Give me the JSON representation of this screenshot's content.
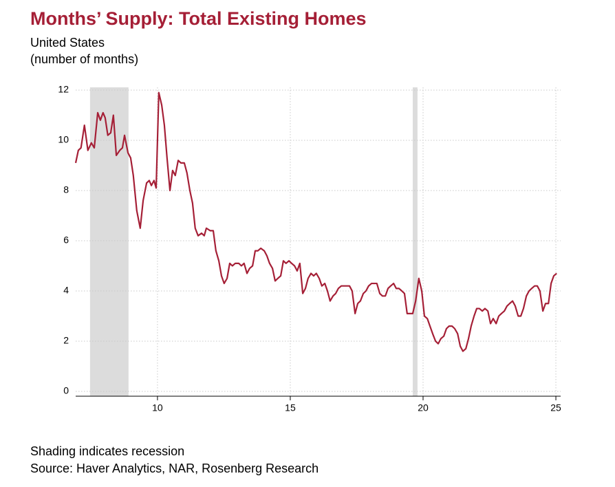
{
  "chart_data": {
    "type": "line",
    "title": "Months’ Supply: Total Existing Homes",
    "subtitle": "United States",
    "y_label": "(number of months)",
    "footnote": "Shading indicates recession",
    "source": "Source: Haver Analytics, NAR, Rosenberg Research",
    "xlim": [
      6.92,
      25.18
    ],
    "xticks": [
      10,
      15,
      20,
      25
    ],
    "ylim": [
      0,
      12
    ],
    "yticks": [
      0,
      2,
      4,
      6,
      8,
      10,
      12
    ],
    "grid": true,
    "recessions": [
      [
        7.46,
        8.91
      ],
      [
        19.61,
        19.79
      ]
    ],
    "recession_color": "#dcdcdc",
    "series": [
      {
        "color": "#a51f36",
        "x": [
          6.92,
          7.02,
          7.12,
          7.25,
          7.38,
          7.51,
          7.62,
          7.75,
          7.85,
          7.95,
          8.03,
          8.13,
          8.24,
          8.34,
          8.45,
          8.58,
          8.68,
          8.76,
          8.89,
          8.99,
          9.09,
          9.22,
          9.35,
          9.46,
          9.59,
          9.69,
          9.77,
          9.87,
          9.95,
          10.05,
          10.16,
          10.26,
          10.36,
          10.47,
          10.57,
          10.67,
          10.78,
          10.88,
          11.01,
          11.11,
          11.22,
          11.32,
          11.42,
          11.53,
          11.66,
          11.76,
          11.84,
          11.99,
          12.1,
          12.2,
          12.31,
          12.41,
          12.51,
          12.62,
          12.72,
          12.82,
          12.93,
          13.06,
          13.16,
          13.26,
          13.37,
          13.47,
          13.58,
          13.68,
          13.78,
          13.89,
          14.02,
          14.12,
          14.22,
          14.33,
          14.43,
          14.53,
          14.64,
          14.74,
          14.84,
          14.95,
          15.05,
          15.16,
          15.26,
          15.36,
          15.47,
          15.57,
          15.67,
          15.78,
          15.88,
          15.98,
          16.09,
          16.19,
          16.3,
          16.4,
          16.5,
          16.61,
          16.71,
          16.81,
          16.92,
          17.02,
          17.12,
          17.23,
          17.33,
          17.44,
          17.54,
          17.64,
          17.75,
          17.85,
          17.95,
          18.06,
          18.16,
          18.26,
          18.37,
          18.47,
          18.58,
          18.68,
          18.78,
          18.89,
          18.99,
          19.09,
          19.2,
          19.3,
          19.4,
          19.51,
          19.61,
          19.72,
          19.84,
          19.95,
          20.05,
          20.16,
          20.26,
          20.36,
          20.47,
          20.57,
          20.67,
          20.78,
          20.88,
          20.98,
          21.09,
          21.19,
          21.3,
          21.4,
          21.5,
          21.61,
          21.71,
          21.81,
          21.92,
          22.02,
          22.12,
          22.23,
          22.33,
          22.44,
          22.54,
          22.64,
          22.75,
          22.85,
          22.95,
          23.06,
          23.16,
          23.26,
          23.37,
          23.47,
          23.58,
          23.68,
          23.78,
          23.89,
          23.99,
          24.09,
          24.2,
          24.3,
          24.4,
          24.51,
          24.61,
          24.72,
          24.82,
          24.92,
          25.03
        ],
        "values": [
          9.1,
          9.6,
          9.7,
          10.6,
          9.6,
          9.9,
          9.7,
          11.1,
          10.8,
          11.1,
          10.9,
          10.2,
          10.3,
          11.0,
          9.4,
          9.6,
          9.7,
          10.2,
          9.5,
          9.3,
          8.6,
          7.2,
          6.5,
          7.6,
          8.3,
          8.4,
          8.2,
          8.4,
          8.1,
          11.9,
          11.4,
          10.6,
          9.3,
          8.0,
          8.8,
          8.6,
          9.2,
          9.1,
          9.1,
          8.7,
          8.0,
          7.5,
          6.5,
          6.2,
          6.3,
          6.2,
          6.5,
          6.4,
          6.4,
          5.6,
          5.2,
          4.6,
          4.3,
          4.5,
          5.1,
          5.0,
          5.1,
          5.1,
          5.0,
          5.1,
          4.7,
          4.9,
          5.0,
          5.6,
          5.6,
          5.7,
          5.6,
          5.4,
          5.1,
          4.9,
          4.4,
          4.5,
          4.6,
          5.2,
          5.1,
          5.2,
          5.1,
          5.0,
          4.8,
          5.1,
          3.9,
          4.1,
          4.5,
          4.7,
          4.6,
          4.7,
          4.5,
          4.2,
          4.3,
          4.0,
          3.6,
          3.8,
          3.9,
          4.1,
          4.2,
          4.2,
          4.2,
          4.2,
          4.0,
          3.1,
          3.5,
          3.6,
          3.9,
          4.0,
          4.2,
          4.3,
          4.3,
          4.3,
          3.9,
          3.8,
          3.8,
          4.1,
          4.2,
          4.3,
          4.1,
          4.1,
          4.0,
          3.9,
          3.1,
          3.1,
          3.1,
          3.6,
          4.5,
          4.0,
          3.0,
          2.9,
          2.6,
          2.3,
          2.0,
          1.9,
          2.1,
          2.2,
          2.5,
          2.6,
          2.6,
          2.5,
          2.3,
          1.8,
          1.6,
          1.7,
          2.1,
          2.6,
          3.0,
          3.3,
          3.3,
          3.2,
          3.3,
          3.2,
          2.7,
          2.9,
          2.7,
          3.0,
          3.1,
          3.2,
          3.4,
          3.5,
          3.6,
          3.4,
          3.0,
          3.0,
          3.3,
          3.8,
          4.0,
          4.1,
          4.2,
          4.2,
          4.0,
          3.2,
          3.5,
          3.5,
          4.3,
          4.6,
          4.7
        ]
      }
    ]
  }
}
